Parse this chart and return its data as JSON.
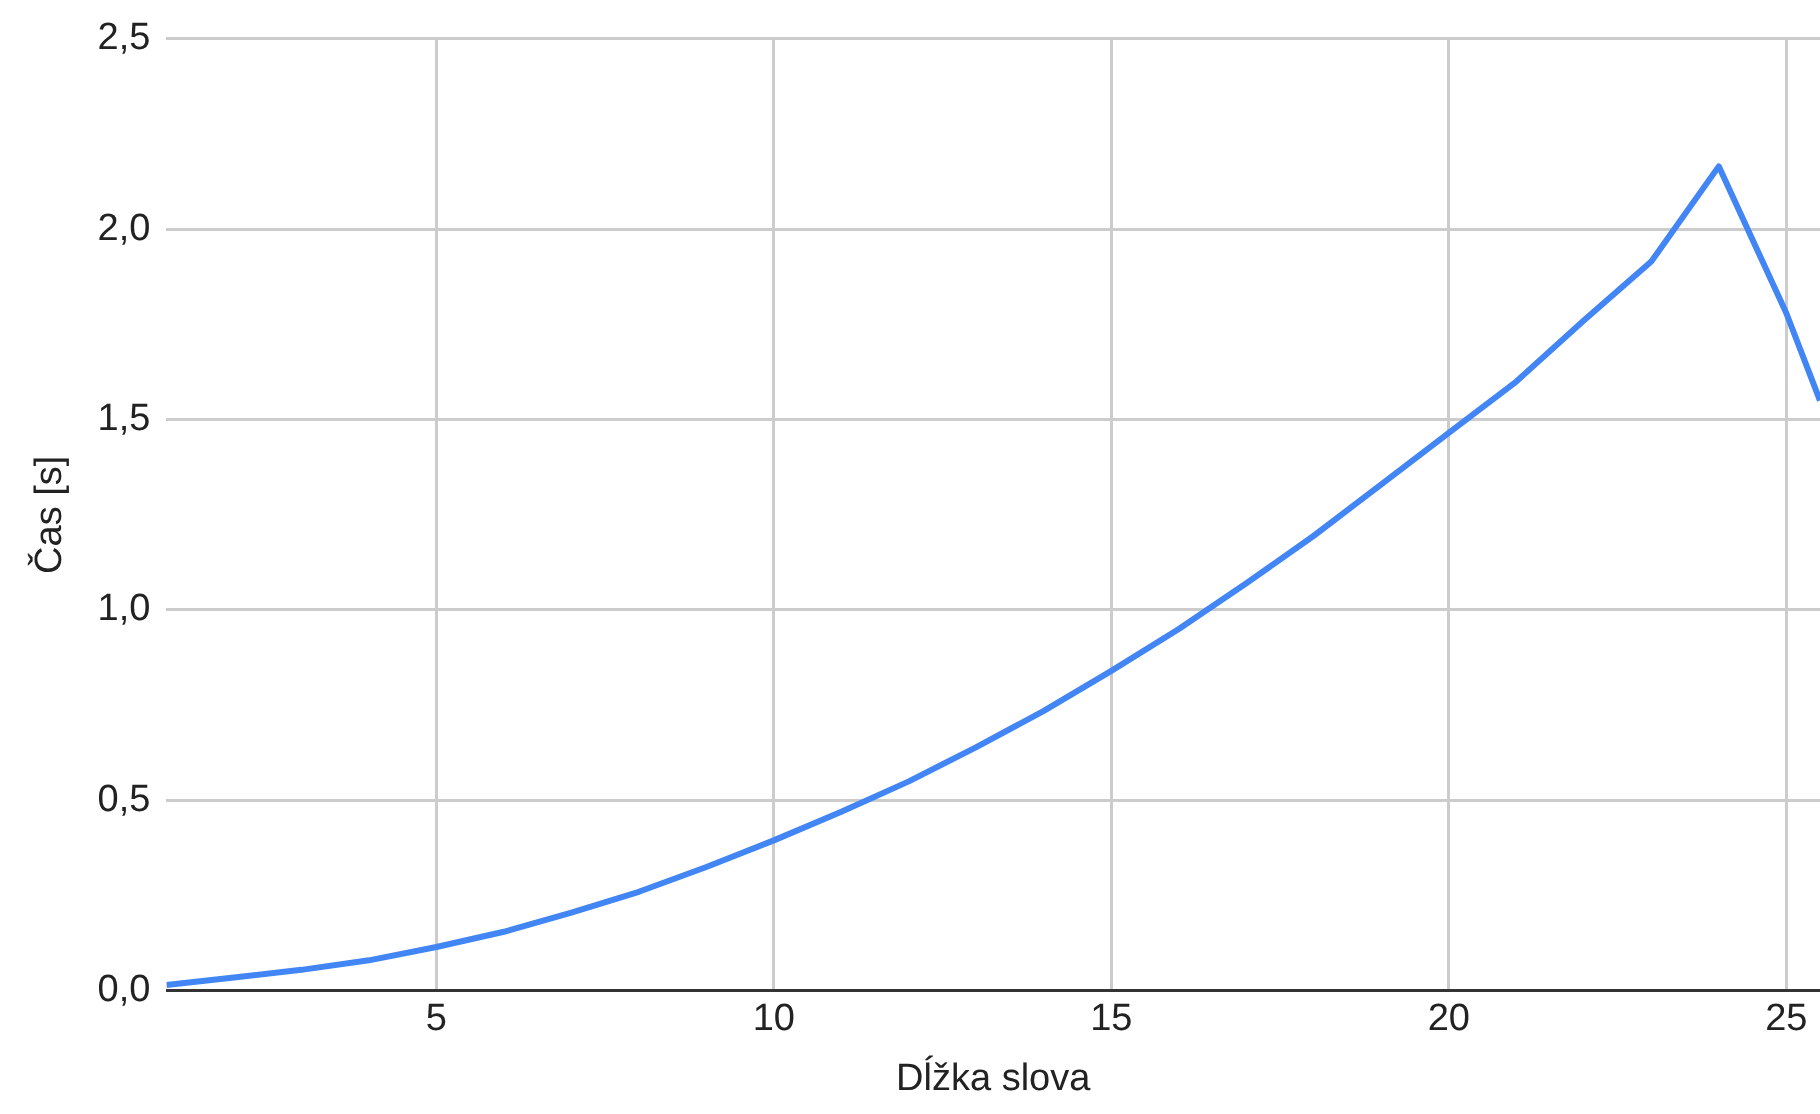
{
  "chart_data": {
    "type": "line",
    "xlabel": "Dĺžka slova",
    "ylabel": "Čas [s]",
    "x": [
      1,
      2,
      3,
      4,
      5,
      6,
      7,
      8,
      9,
      10,
      11,
      12,
      13,
      14,
      15,
      16,
      17,
      18,
      19,
      20,
      21,
      22,
      23,
      24,
      25,
      25.5
    ],
    "series": [
      {
        "color": "#4285f4",
        "values": [
          0.015,
          0.035,
          0.055,
          0.08,
          0.115,
          0.155,
          0.205,
          0.26,
          0.325,
          0.395,
          0.47,
          0.55,
          0.64,
          0.735,
          0.84,
          0.95,
          1.07,
          1.195,
          1.33,
          1.465,
          1.6,
          1.76,
          1.915,
          2.165,
          1.78,
          1.55
        ]
      }
    ],
    "xlim": [
      1,
      25.5
    ],
    "xticks": [
      5,
      10,
      15,
      20,
      25
    ],
    "ylim": [
      0,
      2.5
    ],
    "yticks": [
      {
        "value": 0,
        "label": "0,0"
      },
      {
        "value": 0.5,
        "label": "0,5"
      },
      {
        "value": 1,
        "label": "1,0"
      },
      {
        "value": 1.5,
        "label": "1,5"
      },
      {
        "value": 2,
        "label": "2,0"
      },
      {
        "value": 2.5,
        "label": "2,5"
      }
    ],
    "grid": true,
    "legend": false,
    "marker": "none",
    "line_style": "solid"
  }
}
